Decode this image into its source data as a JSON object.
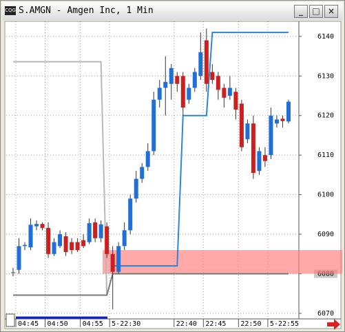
{
  "chart_data": {
    "type": "candlestick",
    "title": "S.AMGN - Amgen Inc, 1 Min",
    "categories": [
      "04:45",
      null,
      null,
      null,
      null,
      "04:50",
      null,
      null,
      null,
      null,
      null,
      "04:55",
      null,
      null,
      null,
      null,
      "5-22:30",
      null,
      null,
      null,
      null,
      null,
      null,
      null,
      null,
      null,
      null,
      "22:40",
      null,
      null,
      null,
      null,
      "22:45",
      null,
      null,
      null,
      null,
      null,
      "22:50",
      null,
      null,
      null,
      null,
      "5-22:55",
      null,
      null,
      null,
      null
    ],
    "open": [
      6080.4,
      6081,
      6087,
      6086.7,
      6092,
      6092.6,
      6091.6,
      6085,
      6087,
      6089.5,
      6088,
      6088,
      6088.5,
      6088,
      6093,
      6089,
      6092,
      6085,
      6080.5,
      6087,
      6091,
      6099,
      6104,
      6107,
      6111,
      6124,
      6127,
      6128,
      6130,
      6130,
      6124,
      6127,
      6130,
      6139,
      6131,
      6130,
      6127,
      6125,
      6126,
      6123,
      6114,
      6118,
      6106,
      6110,
      6110,
      6118,
      6119.2,
      6118.5
    ],
    "high": [
      6081.5,
      6089,
      6088,
      6094,
      6093.5,
      6093,
      6093,
      6089,
      6091,
      6090.5,
      6089,
      6089,
      6090,
      6094,
      6094,
      6093.5,
      6093,
      6087,
      6088,
      6093,
      6100,
      6106,
      6108,
      6113,
      6126,
      6129,
      6135,
      6133,
      6131,
      6131,
      6128,
      6132,
      6141,
      6142,
      6133,
      6131,
      6128,
      6130,
      6127,
      6124,
      6119,
      6120,
      6112,
      6112,
      6122,
      6120,
      6120,
      6124
    ],
    "low": [
      6079.4,
      6080,
      6086,
      6086,
      6091,
      6091,
      6084,
      6084.5,
      6086.5,
      6084.5,
      6085,
      6085.5,
      6086.5,
      6087.5,
      6088,
      6088,
      6084,
      6071,
      6080,
      6086,
      6090,
      6098,
      6103,
      6106,
      6110,
      6122,
      6120,
      6124,
      6126,
      6120,
      6123,
      6126,
      6129,
      6126,
      6128,
      6124,
      6122,
      6124,
      6119,
      6111,
      6113,
      6104,
      6105,
      6107,
      6109,
      6117,
      6117,
      6118
    ],
    "close": [
      6080.4,
      6087,
      6087.3,
      6092.4,
      6092.6,
      6091.6,
      6085,
      6088,
      6090,
      6085.5,
      6086,
      6086,
      6087,
      6092.8,
      6089,
      6092.5,
      6085,
      6080.5,
      6087,
      6091,
      6099,
      6104,
      6107,
      6111,
      6124,
      6127,
      6128.5,
      6132,
      6128,
      6122,
      6127,
      6131,
      6136,
      6128,
      6129,
      6126.5,
      6124.5,
      6127,
      6121.5,
      6112,
      6118,
      6105.5,
      6111,
      6108.5,
      6120,
      6119,
      6118.6,
      6123.5
    ],
    "up_color": "#1f6fd6",
    "down_color": "#cc2020",
    "lines": [
      {
        "color": "#b8b8b8",
        "values": [
          6133.6,
          6133.6,
          6133.6,
          6133.6,
          6133.6,
          6133.6,
          6133.6,
          6133.6,
          6133.6,
          6133.6,
          6133.6,
          6133.6,
          6133.6,
          6133.6,
          6133.6,
          6133.6,
          6074.6,
          null,
          null,
          null,
          null,
          null,
          null,
          null,
          null,
          null,
          null,
          null,
          null,
          null,
          null,
          null,
          null,
          null,
          null,
          null,
          null,
          null,
          null,
          null,
          null,
          null,
          null,
          null,
          null,
          null,
          null,
          null
        ]
      },
      {
        "color": "#777777",
        "values": [
          6074.6,
          6074.6,
          6074.6,
          6074.6,
          6074.6,
          6074.6,
          6074.6,
          6074.6,
          6074.6,
          6074.6,
          6074.6,
          6074.6,
          6074.6,
          6074.6,
          6074.6,
          6074.6,
          6074.6,
          6080,
          6080,
          6080,
          6080,
          6080,
          6080,
          6080,
          6080,
          6080,
          6080,
          6080,
          6080,
          6080,
          6080,
          6080,
          6080,
          6080,
          6080,
          6080,
          6080,
          6080,
          6080,
          6080,
          6080,
          6080,
          6080,
          6080,
          6080,
          6080,
          6080,
          6080
        ]
      },
      {
        "color": "#2a86d8",
        "values": [
          null,
          null,
          null,
          null,
          null,
          null,
          null,
          null,
          null,
          null,
          null,
          null,
          null,
          null,
          null,
          null,
          null,
          6082,
          6082,
          6082,
          6082,
          6082,
          6082,
          6082,
          6082,
          6082,
          6082,
          6082,
          6082,
          6120,
          6120,
          6120,
          6120,
          6120,
          6141,
          6141,
          6141,
          6141,
          6141,
          6141,
          6141,
          6141,
          6141,
          6141,
          6141,
          6141,
          6141,
          6141
        ]
      }
    ],
    "band": [
      6080,
      6086
    ],
    "band_color": "#ff7b7b",
    "ylim": [
      6068.6,
      6143.8
    ],
    "yticks": [
      6070,
      6080,
      6090,
      6100,
      6110,
      6120,
      6130,
      6140
    ],
    "grid": true
  }
}
